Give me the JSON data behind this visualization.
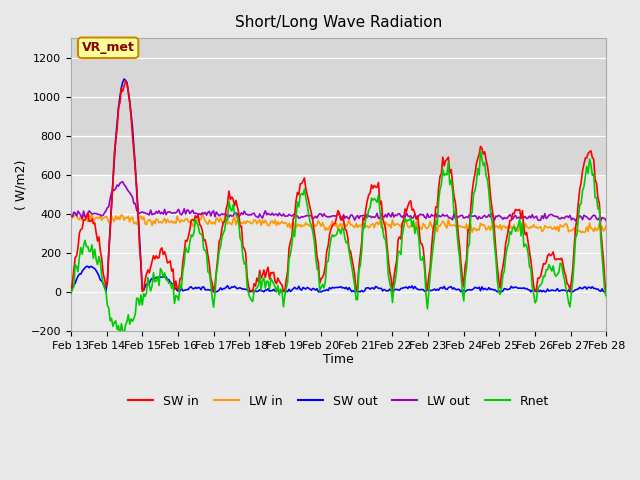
{
  "title": "Short/Long Wave Radiation",
  "xlabel": "Time",
  "ylabel": "( W/m2)",
  "ylim": [
    -200,
    1300
  ],
  "x_tick_labels": [
    "Feb 13",
    "Feb 14",
    "Feb 15",
    "Feb 16",
    "Feb 17",
    "Feb 18",
    "Feb 19",
    "Feb 20",
    "Feb 21",
    "Feb 22",
    "Feb 23",
    "Feb 24",
    "Feb 25",
    "Feb 26",
    "Feb 27",
    "Feb 28"
  ],
  "annotation": "VR_met",
  "bg_color": "#e8e8e8",
  "line_colors": {
    "SW in": "#ff0000",
    "LW in": "#ff9900",
    "SW out": "#0000ff",
    "LW out": "#9900cc",
    "Rnet": "#00cc00"
  },
  "line_width": 1.2,
  "yticks": [
    -200,
    0,
    200,
    400,
    600,
    800,
    1000,
    1200
  ]
}
